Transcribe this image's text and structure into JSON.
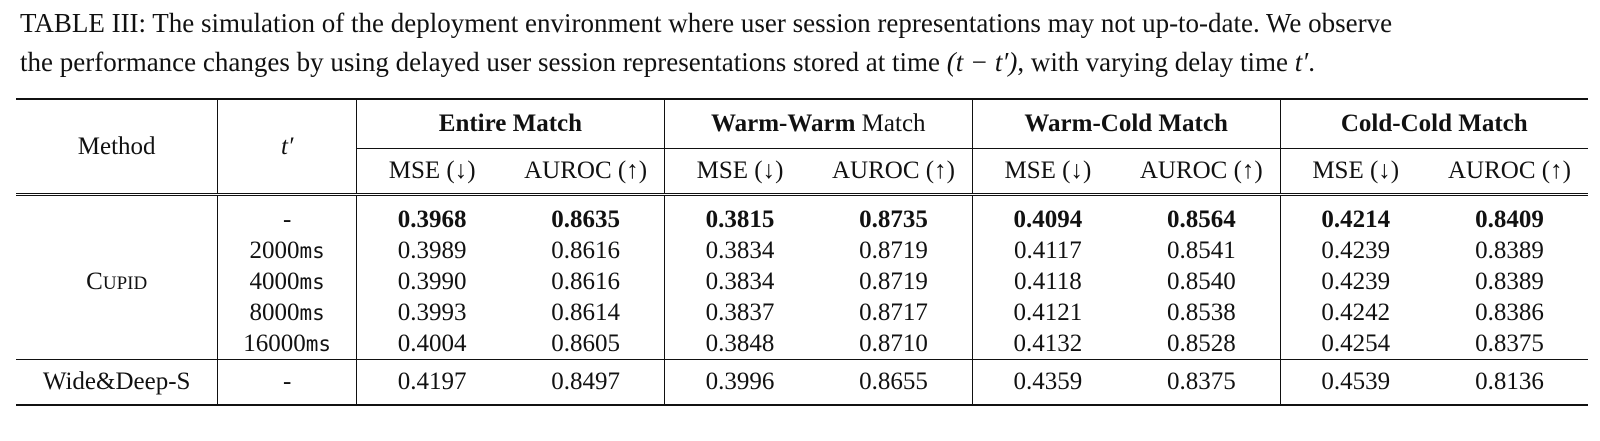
{
  "caption": {
    "line1": "TABLE III: The simulation of the deployment environment where user session representations may not up-to-date. We observe",
    "line2_pre": "the performance changes by using delayed user session representations stored at time ",
    "line2_math": "(t − t′)",
    "line2_mid": ", with varying delay time ",
    "line2_math2": "t′",
    "line2_end": "."
  },
  "table": {
    "col_method": "Method",
    "col_t": "t′",
    "groups": [
      {
        "bold_part": "Entire Match",
        "plain_part": ""
      },
      {
        "bold_part": "Warm-Warm",
        "plain_part": " Match"
      },
      {
        "bold_part": "Warm-Cold Match",
        "plain_part": ""
      },
      {
        "bold_part": "Cold-Cold Match",
        "plain_part": ""
      }
    ],
    "metric_mse": "MSE (↓)",
    "metric_auroc": "AUROC (↑)",
    "cupid_label_big": "C",
    "cupid_label_small": "UPID",
    "cupid_rows": [
      {
        "t": "-",
        "unit": "",
        "vals": [
          "0.3968",
          "0.8635",
          "0.3815",
          "0.8735",
          "0.4094",
          "0.8564",
          "0.4214",
          "0.8409"
        ],
        "bold": true
      },
      {
        "t": "2000",
        "unit": "ms",
        "vals": [
          "0.3989",
          "0.8616",
          "0.3834",
          "0.8719",
          "0.4117",
          "0.8541",
          "0.4239",
          "0.8389"
        ],
        "bold": false
      },
      {
        "t": "4000",
        "unit": "ms",
        "vals": [
          "0.3990",
          "0.8616",
          "0.3834",
          "0.8719",
          "0.4118",
          "0.8540",
          "0.4239",
          "0.8389"
        ],
        "bold": false
      },
      {
        "t": "8000",
        "unit": "ms",
        "vals": [
          "0.3993",
          "0.8614",
          "0.3837",
          "0.8717",
          "0.4121",
          "0.8538",
          "0.4242",
          "0.8386"
        ],
        "bold": false
      },
      {
        "t": "16000",
        "unit": "ms",
        "vals": [
          "0.4004",
          "0.8605",
          "0.3848",
          "0.8710",
          "0.4132",
          "0.8528",
          "0.4254",
          "0.8375"
        ],
        "bold": false
      }
    ],
    "widedeep_row": {
      "method": "Wide&Deep-S",
      "t": "-",
      "vals": [
        "0.4197",
        "0.8497",
        "0.3996",
        "0.8655",
        "0.4359",
        "0.8375",
        "0.4539",
        "0.8136"
      ]
    }
  }
}
